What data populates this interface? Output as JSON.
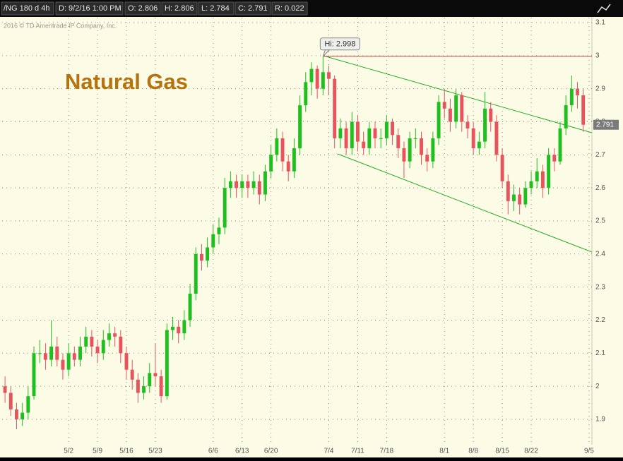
{
  "header": {
    "symbol": "/NG 180 d 4h",
    "date": "D: 9/2/16 1:00 PM",
    "open": "O: 2.806",
    "high": "H: 2.806",
    "low": "L: 2.784",
    "close": "C: 2.791",
    "range": "R: 0.022"
  },
  "copyright": "2016 © TD Ameritrade IP Company, Inc.",
  "chart_data": {
    "type": "candlestick",
    "title": "Natural Gas",
    "annotation": "Hi: 2.998",
    "up_color": "#1fbf1f",
    "down_color": "#e8545e",
    "grid": true,
    "ylim": [
      1.823,
      3.115
    ],
    "yticks": [
      1.9,
      2,
      2.1,
      2.2,
      2.3,
      2.4,
      2.5,
      2.6,
      2.7,
      2.8,
      2.9,
      3,
      3.1
    ],
    "categories": [
      null,
      null,
      null,
      null,
      null,
      null,
      null,
      null,
      null,
      null,
      null,
      "5/2",
      null,
      null,
      null,
      null,
      "5/9",
      null,
      null,
      null,
      null,
      "5/16",
      null,
      null,
      null,
      null,
      "5/23",
      null,
      null,
      null,
      null,
      null,
      null,
      null,
      null,
      null,
      "6/6",
      null,
      null,
      null,
      null,
      "6/13",
      null,
      null,
      null,
      null,
      "6/20",
      null,
      null,
      null,
      null,
      null,
      null,
      null,
      null,
      null,
      "7/4",
      null,
      null,
      null,
      null,
      "7/11",
      null,
      null,
      null,
      null,
      "7/18",
      null,
      null,
      null,
      null,
      null,
      null,
      null,
      null,
      null,
      "8/1",
      null,
      null,
      null,
      null,
      "8/8",
      null,
      null,
      null,
      null,
      "8/15",
      null,
      null,
      null,
      null,
      "8/22",
      null,
      null,
      null,
      null,
      null,
      null,
      null,
      null,
      null,
      "9/5"
    ],
    "open": [
      2.0,
      1.98,
      1.93,
      1.9,
      1.92,
      1.97,
      2.1,
      2.1,
      2.08,
      2.12,
      2.08,
      2.05,
      2.1,
      2.08,
      2.12,
      2.15,
      2.12,
      2.1,
      2.14,
      2.16,
      2.15,
      2.1,
      2.05,
      2.02,
      1.98,
      2.0,
      2.04,
      2.03,
      1.97,
      2.17,
      2.18,
      2.16,
      2.2,
      2.28,
      2.4,
      2.38,
      2.42,
      2.46,
      2.48,
      2.6,
      2.62,
      2.6,
      2.62,
      2.6,
      2.62,
      2.58,
      2.65,
      2.7,
      2.75,
      2.68,
      2.65,
      2.72,
      2.85,
      2.92,
      2.96,
      2.9,
      2.95,
      2.93,
      2.75,
      2.78,
      2.72,
      2.8,
      2.74,
      2.72,
      2.78,
      2.75,
      2.75,
      2.8,
      2.76,
      2.72,
      2.68,
      2.75,
      2.75,
      2.7,
      2.68,
      2.75,
      2.86,
      2.84,
      2.8,
      2.88,
      2.8,
      2.78,
      2.72,
      2.74,
      2.84,
      2.8,
      2.7,
      2.62,
      2.56,
      2.58,
      2.55,
      2.6,
      2.62,
      2.65,
      2.6,
      2.7,
      2.68,
      2.78,
      2.85,
      2.9,
      2.88,
      null
    ],
    "high": [
      2.03,
      2.0,
      1.95,
      1.95,
      2.0,
      2.12,
      2.14,
      2.13,
      2.2,
      2.15,
      2.1,
      2.13,
      2.12,
      2.15,
      2.18,
      2.17,
      2.14,
      2.17,
      2.19,
      2.18,
      2.17,
      2.12,
      2.08,
      2.04,
      2.03,
      2.07,
      2.13,
      2.05,
      2.19,
      2.21,
      2.2,
      2.23,
      2.31,
      2.42,
      2.43,
      2.45,
      2.49,
      2.51,
      2.63,
      2.65,
      2.64,
      2.64,
      2.64,
      2.65,
      2.64,
      2.67,
      2.73,
      2.78,
      2.77,
      2.7,
      2.75,
      2.88,
      2.95,
      2.98,
      2.97,
      2.998,
      2.97,
      2.94,
      2.81,
      2.8,
      2.83,
      2.82,
      2.77,
      2.8,
      2.8,
      2.78,
      2.82,
      2.81,
      2.78,
      2.74,
      2.77,
      2.78,
      2.77,
      2.72,
      2.77,
      2.88,
      2.9,
      2.87,
      2.9,
      2.89,
      2.82,
      2.8,
      2.77,
      2.89,
      2.86,
      2.82,
      2.72,
      2.64,
      2.61,
      2.6,
      2.62,
      2.65,
      2.69,
      2.67,
      2.72,
      2.72,
      2.8,
      2.88,
      2.94,
      2.92,
      2.9,
      null
    ],
    "low": [
      1.95,
      1.91,
      1.87,
      1.88,
      1.9,
      1.96,
      2.07,
      2.05,
      2.06,
      2.06,
      2.02,
      2.03,
      2.06,
      2.06,
      2.1,
      2.09,
      2.07,
      2.08,
      2.12,
      2.12,
      2.07,
      2.02,
      1.99,
      1.95,
      1.96,
      1.98,
      2.0,
      1.95,
      1.96,
      2.14,
      2.13,
      2.14,
      2.18,
      2.26,
      2.35,
      2.36,
      2.4,
      2.43,
      2.46,
      2.57,
      2.57,
      2.57,
      2.57,
      2.58,
      2.55,
      2.56,
      2.63,
      2.68,
      2.65,
      2.62,
      2.63,
      2.7,
      2.83,
      2.88,
      2.87,
      2.88,
      2.88,
      2.72,
      2.72,
      2.7,
      2.7,
      2.71,
      2.7,
      2.7,
      2.72,
      2.72,
      2.73,
      2.73,
      2.69,
      2.63,
      2.66,
      2.72,
      2.67,
      2.65,
      2.66,
      2.73,
      2.81,
      2.77,
      2.78,
      2.77,
      2.75,
      2.7,
      2.7,
      2.72,
      2.77,
      2.68,
      2.6,
      2.52,
      2.53,
      2.52,
      2.54,
      2.58,
      2.6,
      2.57,
      2.58,
      2.65,
      2.67,
      2.76,
      2.83,
      2.84,
      2.77,
      null
    ],
    "close": [
      1.98,
      1.93,
      1.9,
      1.92,
      1.97,
      2.1,
      2.1,
      2.08,
      2.12,
      2.08,
      2.05,
      2.1,
      2.08,
      2.12,
      2.15,
      2.12,
      2.1,
      2.14,
      2.16,
      2.15,
      2.1,
      2.05,
      2.02,
      1.98,
      2.0,
      2.04,
      2.03,
      1.97,
      2.17,
      2.18,
      2.16,
      2.2,
      2.28,
      2.4,
      2.38,
      2.42,
      2.46,
      2.48,
      2.6,
      2.62,
      2.6,
      2.62,
      2.6,
      2.62,
      2.58,
      2.65,
      2.7,
      2.75,
      2.68,
      2.65,
      2.72,
      2.85,
      2.92,
      2.96,
      2.9,
      2.95,
      2.93,
      2.75,
      2.78,
      2.72,
      2.8,
      2.74,
      2.72,
      2.78,
      2.75,
      2.75,
      2.8,
      2.76,
      2.72,
      2.68,
      2.75,
      2.75,
      2.7,
      2.68,
      2.75,
      2.86,
      2.84,
      2.8,
      2.88,
      2.8,
      2.78,
      2.72,
      2.74,
      2.84,
      2.8,
      2.7,
      2.62,
      2.56,
      2.58,
      2.55,
      2.6,
      2.62,
      2.65,
      2.6,
      2.7,
      2.68,
      2.78,
      2.85,
      2.9,
      2.88,
      2.791,
      null
    ]
  }
}
